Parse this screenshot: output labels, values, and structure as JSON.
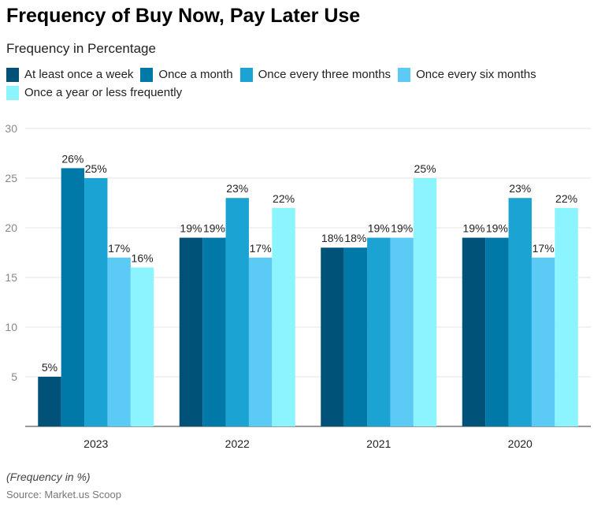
{
  "title": "Frequency of Buy Now, Pay Later Use",
  "subtitle": "Frequency in Percentage",
  "note": "(Frequency in %)",
  "source": "Source: Market.us Scoop",
  "chart_data": {
    "type": "bar",
    "categories": [
      "2023",
      "2022",
      "2021",
      "2020"
    ],
    "series": [
      {
        "name": "At least once a week",
        "color": "#005279",
        "values": [
          5,
          19,
          18,
          19
        ]
      },
      {
        "name": "Once a month",
        "color": "#0079a8",
        "values": [
          26,
          19,
          18,
          19
        ]
      },
      {
        "name": "Once every three months",
        "color": "#1ba4d3",
        "values": [
          25,
          23,
          19,
          23
        ]
      },
      {
        "name": "Once every six months",
        "color": "#5bcaf5",
        "values": [
          17,
          17,
          19,
          17
        ]
      },
      {
        "name": "Once a year or less frequently",
        "color": "#8cf4ff",
        "values": [
          16,
          22,
          25,
          22
        ]
      }
    ],
    "ylim": [
      0,
      30
    ],
    "yticks": [
      5,
      10,
      15,
      20,
      25,
      30
    ],
    "grid": true,
    "legend": "top-left",
    "label_suffix": "%"
  }
}
